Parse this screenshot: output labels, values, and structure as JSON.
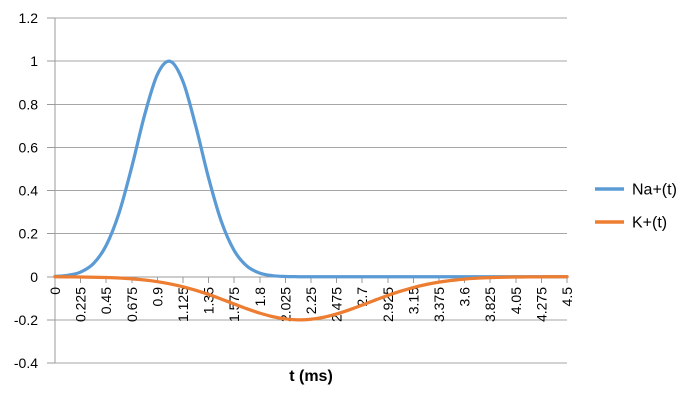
{
  "chart_data": {
    "type": "line",
    "title": "",
    "xlabel": "t (ms)",
    "ylabel": "",
    "xlim": [
      0,
      4.5
    ],
    "ylim": [
      -0.4,
      1.2
    ],
    "grid": "horizontal",
    "legend_position": "right",
    "line_smoothing": true,
    "colors": {
      "gridline": "#a6a6a6",
      "axis": "#9b9b9b",
      "text": "#000000",
      "background": "#ffffff"
    },
    "y_ticks": [
      {
        "label": "1.2",
        "value": 1.2
      },
      {
        "label": "1",
        "value": 1.0
      },
      {
        "label": "0.8",
        "value": 0.8
      },
      {
        "label": "0.6",
        "value": 0.6
      },
      {
        "label": "0.4",
        "value": 0.4
      },
      {
        "label": "0.2",
        "value": 0.2
      },
      {
        "label": "0",
        "value": 0.0
      },
      {
        "label": "-0.2",
        "value": -0.2
      },
      {
        "label": "-0.4",
        "value": -0.4
      }
    ],
    "x_ticks": [
      {
        "label": "0",
        "value": 0
      },
      {
        "label": "0.225",
        "value": 0.225
      },
      {
        "label": "0.45",
        "value": 0.45
      },
      {
        "label": "0.675",
        "value": 0.675
      },
      {
        "label": "0.9",
        "value": 0.9
      },
      {
        "label": "1.125",
        "value": 1.125
      },
      {
        "label": "1.35",
        "value": 1.35
      },
      {
        "label": "1.575",
        "value": 1.575
      },
      {
        "label": "1.8",
        "value": 1.8
      },
      {
        "label": "2.025",
        "value": 2.025
      },
      {
        "label": "2.25",
        "value": 2.25
      },
      {
        "label": "2.475",
        "value": 2.475
      },
      {
        "label": "2.7",
        "value": 2.7
      },
      {
        "label": "2.925",
        "value": 2.925
      },
      {
        "label": "3.15",
        "value": 3.15
      },
      {
        "label": "3.375",
        "value": 3.375
      },
      {
        "label": "3.6",
        "value": 3.6
      },
      {
        "label": "3.825",
        "value": 3.825
      },
      {
        "label": "4.05",
        "value": 4.05
      },
      {
        "label": "4.275",
        "value": 4.275
      },
      {
        "label": "4.5",
        "value": 4.5
      }
    ],
    "series": [
      {
        "name": "Na+(t)",
        "color": "#5b9bd5",
        "x": [
          0,
          0.1125,
          0.225,
          0.3375,
          0.45,
          0.5625,
          0.675,
          0.7875,
          0.9,
          1.0125,
          1.125,
          1.2375,
          1.35,
          1.4625,
          1.575,
          1.6875,
          1.8,
          1.9125,
          2.025,
          2.1375,
          2.25,
          2.3625,
          2.475,
          2.5875,
          2.7,
          2.8125,
          2.925,
          3.0375,
          3.15,
          3.2625,
          3.375,
          3.4875,
          3.6,
          3.7125,
          3.825,
          3.9375,
          4.05,
          4.1625,
          4.275,
          4.3875,
          4.5
        ],
        "values": [
          0.0017,
          0.0066,
          0.0217,
          0.0609,
          0.1453,
          0.2949,
          0.5098,
          0.7498,
          0.9382,
          0.999,
          0.9051,
          0.6979,
          0.4578,
          0.2556,
          0.1214,
          0.049,
          0.0169,
          0.0049,
          0.0012,
          0.0003,
          0.0001,
          0,
          0,
          0,
          0,
          0,
          0,
          0,
          0,
          0,
          0,
          0,
          0,
          0,
          0,
          0,
          0,
          0,
          0,
          0,
          0
        ]
      },
      {
        "name": "K+(t)",
        "color": "#ed7d31",
        "x": [
          0,
          0.1125,
          0.225,
          0.3375,
          0.45,
          0.5625,
          0.675,
          0.7875,
          0.9,
          1.0125,
          1.125,
          1.2375,
          1.35,
          1.4625,
          1.575,
          1.6875,
          1.8,
          1.9125,
          2.025,
          2.1375,
          2.25,
          2.3625,
          2.475,
          2.5875,
          2.7,
          2.8125,
          2.925,
          3.0375,
          3.15,
          3.2625,
          3.375,
          3.4875,
          3.6,
          3.7125,
          3.825,
          3.9375,
          4.05,
          4.1625,
          4.275,
          4.3875,
          4.5
        ],
        "values": [
          -0.0003,
          -0.0006,
          -0.0012,
          -0.0021,
          -0.0036,
          -0.006,
          -0.0097,
          -0.0152,
          -0.0228,
          -0.0332,
          -0.0465,
          -0.0629,
          -0.0822,
          -0.1037,
          -0.1264,
          -0.1486,
          -0.1687,
          -0.1849,
          -0.1957,
          -0.2,
          -0.1972,
          -0.1878,
          -0.1727,
          -0.1533,
          -0.1314,
          -0.1087,
          -0.0868,
          -0.067,
          -0.0499,
          -0.0359,
          -0.0249,
          -0.0167,
          -0.0108,
          -0.0067,
          -0.0041,
          -0.0024,
          -0.0013,
          -0.0007,
          -0.0004,
          -0.0002,
          -0.0001
        ]
      }
    ]
  }
}
